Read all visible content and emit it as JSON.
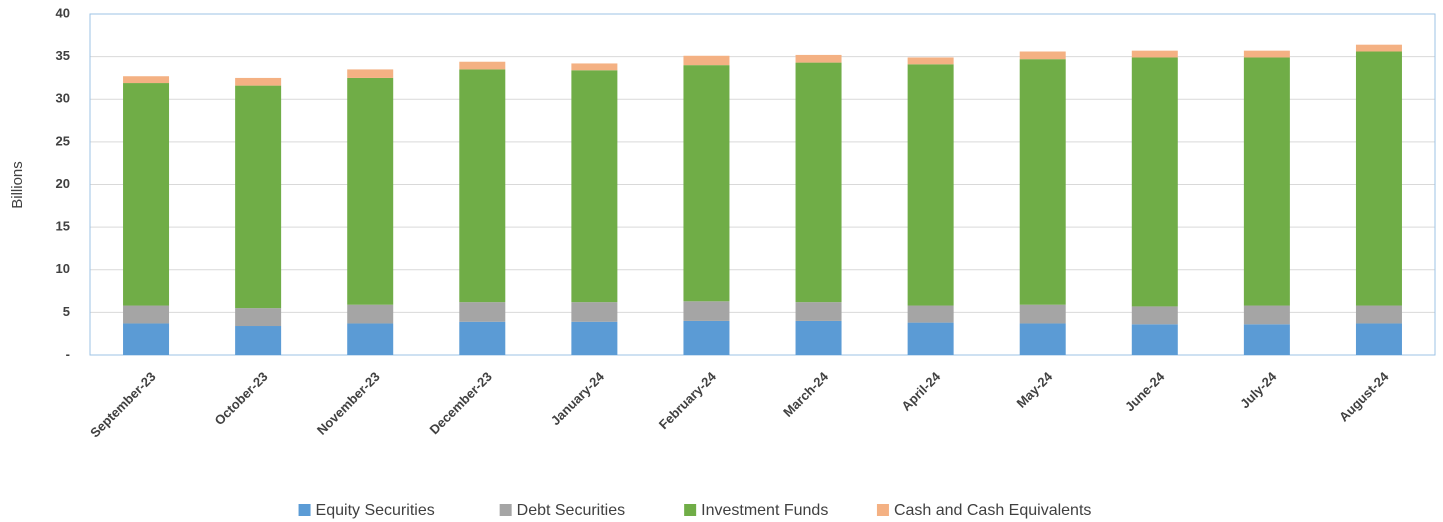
{
  "chart_data": {
    "type": "stacked_bar",
    "y_label": "Billions",
    "categories": [
      "September-23",
      "October-23",
      "November-23",
      "December-23",
      "January-24",
      "February-24",
      "March-24",
      "April-24",
      "May-24",
      "June-24",
      "July-24",
      "August-24"
    ],
    "series": [
      {
        "name": "Equity Securities",
        "color": "#5b9bd5",
        "values": [
          3.7,
          3.4,
          3.7,
          3.9,
          3.9,
          4.0,
          4.0,
          3.8,
          3.7,
          3.6,
          3.6,
          3.7
        ]
      },
      {
        "name": "Debt Securities",
        "color": "#a5a5a5",
        "values": [
          2.1,
          2.1,
          2.2,
          2.3,
          2.3,
          2.3,
          2.2,
          2.0,
          2.2,
          2.1,
          2.2,
          2.1
        ]
      },
      {
        "name": "Investment Funds",
        "color": "#70ad47",
        "values": [
          26.1,
          26.1,
          26.6,
          27.3,
          27.2,
          27.7,
          28.1,
          28.3,
          28.8,
          29.2,
          29.1,
          29.8
        ]
      },
      {
        "name": "Cash and Cash Equivalents",
        "color": "#f4b183",
        "values": [
          0.8,
          0.9,
          1.0,
          0.9,
          0.8,
          1.1,
          0.9,
          0.8,
          0.9,
          0.8,
          0.8,
          0.8
        ]
      }
    ],
    "ylim": [
      0,
      40
    ],
    "yticks": [
      {
        "value": 0,
        "label": "-"
      },
      5,
      10,
      15,
      20,
      25,
      30,
      35,
      40
    ],
    "grid": true,
    "legend": "bottom"
  }
}
